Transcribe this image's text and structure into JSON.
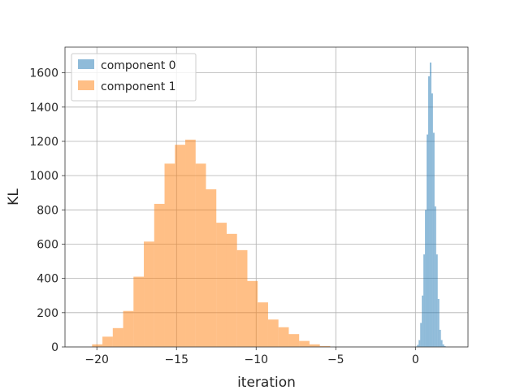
{
  "chart_data": {
    "type": "bar",
    "title": "",
    "xlabel": "iteration",
    "ylabel": "KL",
    "xlim": [
      -22.0,
      3.3
    ],
    "ylim": [
      0,
      1750
    ],
    "xticks": [
      -20,
      -15,
      -10,
      -5,
      0
    ],
    "xtick_labels": [
      "−20",
      "−15",
      "−10",
      "−5",
      "0"
    ],
    "yticks": [
      0,
      200,
      400,
      600,
      800,
      1000,
      1200,
      1400,
      1600
    ],
    "grid": true,
    "legend_position": "top-left",
    "series": [
      {
        "name": "component 0",
        "color": "#1f77b4",
        "alpha": 0.5,
        "bin_start": 0.0,
        "bin_width": 0.1,
        "values": [
          3,
          12,
          40,
          140,
          300,
          540,
          800,
          1240,
          1580,
          1660,
          1480,
          1250,
          820,
          540,
          280,
          100,
          40,
          15,
          5
        ]
      },
      {
        "name": "component 1",
        "color": "#ff7f0e",
        "alpha": 0.5,
        "bin_start": -20.3,
        "bin_width": 0.65,
        "values": [
          15,
          60,
          110,
          210,
          410,
          615,
          835,
          1070,
          1180,
          1210,
          1070,
          920,
          725,
          660,
          565,
          385,
          260,
          160,
          115,
          75,
          35,
          15,
          5
        ]
      }
    ]
  }
}
